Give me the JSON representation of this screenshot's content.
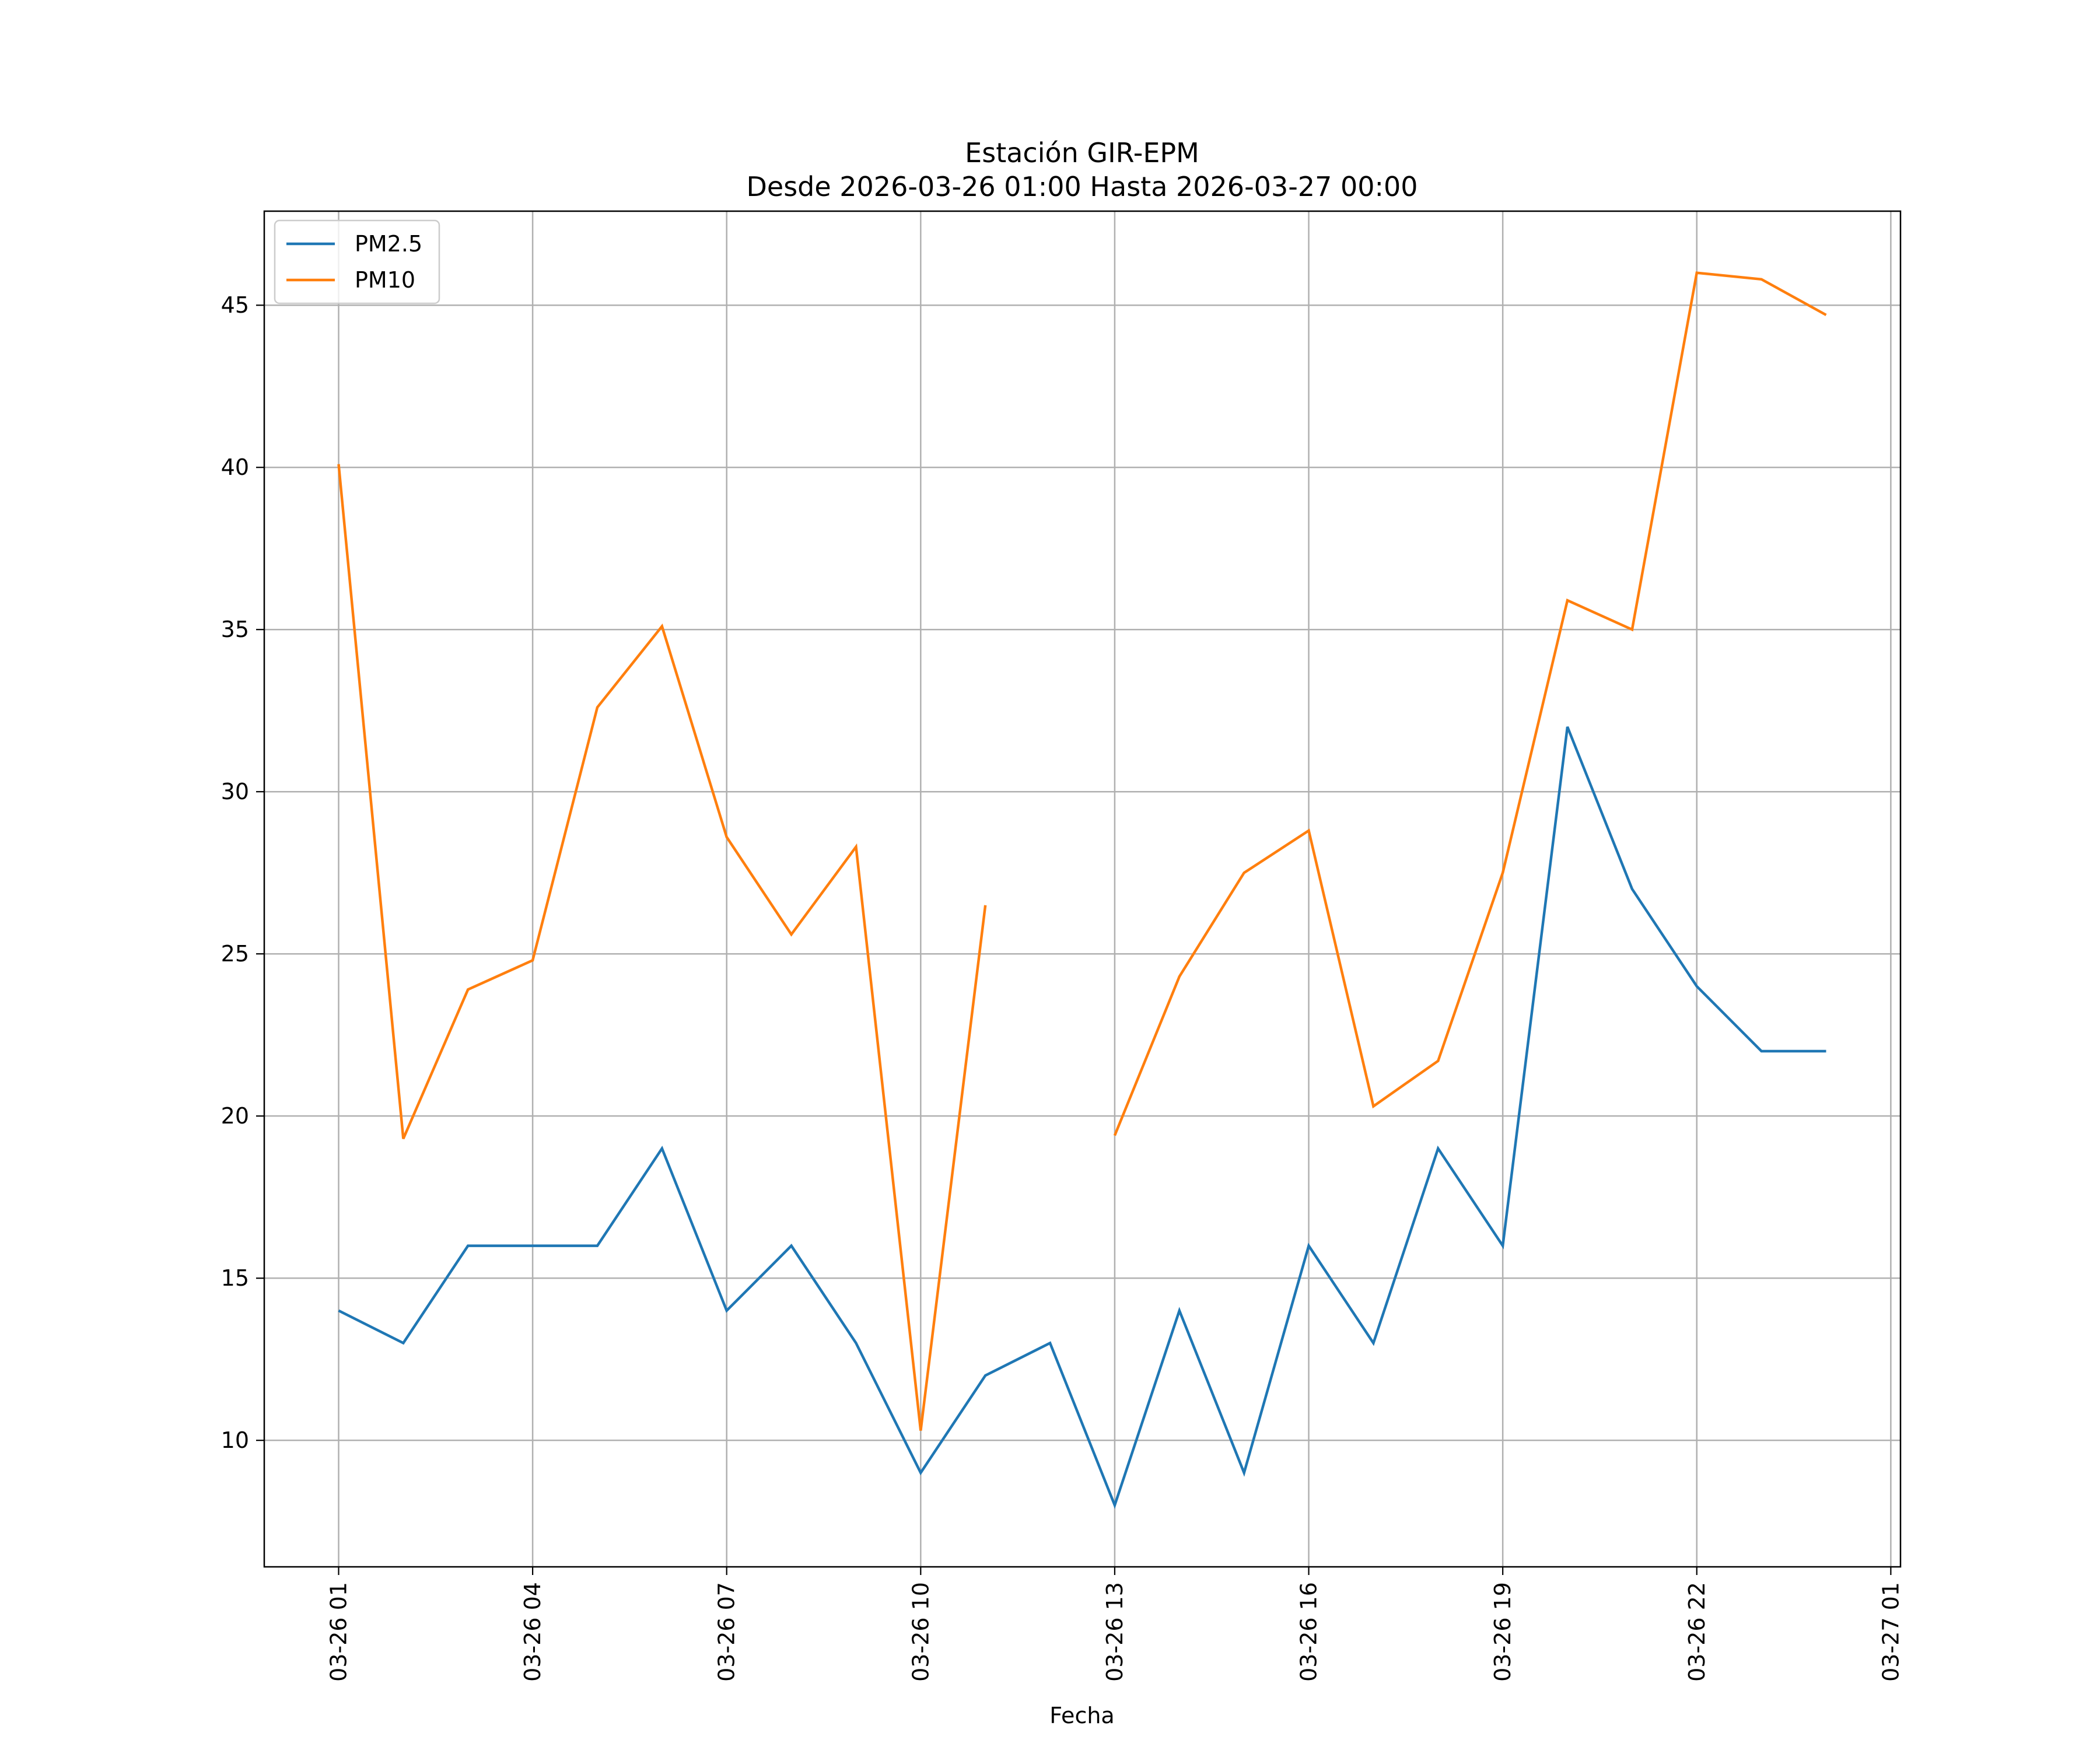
{
  "chart_data": {
    "type": "line",
    "title_line1": "Estación GIR-EPM",
    "title_line2": "Desde 2026-03-26 01:00 Hasta 2026-03-27 00:00",
    "xlabel": "Fecha",
    "ylabel": "",
    "x": [
      1,
      2,
      3,
      4,
      5,
      6,
      7,
      8,
      9,
      10,
      11,
      12,
      13,
      14,
      15,
      16,
      17,
      18,
      19,
      20,
      21,
      22,
      23,
      24
    ],
    "xlim": [
      -0.15,
      25.15
    ],
    "ylim": [
      6.1,
      47.9
    ],
    "x_ticks": [
      {
        "pos": 1,
        "label": "03-26 01"
      },
      {
        "pos": 4,
        "label": "03-26 04"
      },
      {
        "pos": 7,
        "label": "03-26 07"
      },
      {
        "pos": 10,
        "label": "03-26 10"
      },
      {
        "pos": 13,
        "label": "03-26 13"
      },
      {
        "pos": 16,
        "label": "03-26 16"
      },
      {
        "pos": 19,
        "label": "03-26 19"
      },
      {
        "pos": 22,
        "label": "03-26 22"
      },
      {
        "pos": 25,
        "label": "03-27 01"
      }
    ],
    "y_ticks": [
      {
        "pos": 10,
        "label": "10"
      },
      {
        "pos": 15,
        "label": "15"
      },
      {
        "pos": 20,
        "label": "20"
      },
      {
        "pos": 25,
        "label": "25"
      },
      {
        "pos": 30,
        "label": "30"
      },
      {
        "pos": 35,
        "label": "35"
      },
      {
        "pos": 40,
        "label": "40"
      },
      {
        "pos": 45,
        "label": "45"
      }
    ],
    "grid": true,
    "legend_position": "top-left",
    "series": [
      {
        "name": "PM2.5",
        "color": "#1f77b4",
        "values": [
          14,
          13,
          16,
          16,
          16,
          19,
          14,
          16,
          13,
          9,
          12,
          13,
          8,
          14,
          9,
          16,
          13,
          19,
          16,
          32,
          27,
          24,
          22,
          22
        ]
      },
      {
        "name": "PM10",
        "color": "#ff7f0e",
        "values": [
          40.1,
          19.3,
          23.9,
          24.8,
          32.6,
          35.1,
          28.6,
          25.6,
          28.3,
          10.3,
          26.5,
          null,
          19.4,
          24.3,
          27.5,
          28.8,
          20.3,
          21.7,
          27.5,
          35.9,
          35.0,
          46.0,
          45.8,
          44.7
        ]
      }
    ]
  }
}
